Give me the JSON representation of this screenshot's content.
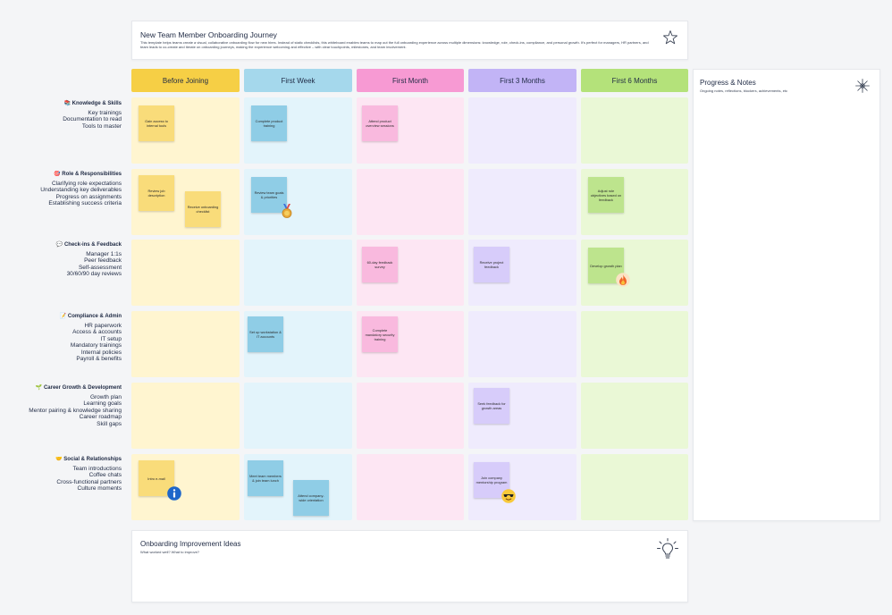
{
  "header": {
    "title": "New Team Member Onboarding Journey",
    "description": "This template helps teams create a visual, collaborative onboarding flow for new hires. Instead of static checklists, this whiteboard enables teams to map out the full onboarding experience across multiple dimensions: knowledge, role, check-ins, compliance, and personal growth. It's perfect for managers, HR partners, and team leads to co-create and iterate on onboarding journeys, making the experience welcoming and effective – with clear touchpoints, milestones, and team involvement."
  },
  "columns": [
    "Before Joining",
    "First Week",
    "First Month",
    "First 3 Months",
    "First 6 Months"
  ],
  "colors": {
    "col_heads": [
      "#f6cf45",
      "#a5d8ec",
      "#f79ad3",
      "#c2b4f6",
      "#b4e27a"
    ],
    "col_cells": [
      "#fff5d0",
      "#e3f4fb",
      "#fde6f3",
      "#efebfd",
      "#eaf8d6"
    ]
  },
  "rows": [
    {
      "title": "📚 Knowledge & Skills",
      "items": [
        "Key trainings",
        "Documentation to read",
        "Tools to master"
      ]
    },
    {
      "title": "🎯 Role & Responsibilities",
      "items": [
        "Clarifying role expectations",
        "Understanding key deliverables",
        "Progress on assignments",
        "Establishing success criteria"
      ]
    },
    {
      "title": "💬 Check-ins & Feedback",
      "items": [
        "Manager 1:1s",
        "Peer feedback",
        "Self-assessment",
        "30/60/90 day reviews"
      ]
    },
    {
      "title": "📝 Compliance & Admin",
      "items": [
        "HR paperwork",
        "Access & accounts",
        "IT setup",
        "Mandatory trainings",
        "Internal policies",
        "Payroll & benefits"
      ]
    },
    {
      "title": "🌱 Career Growth & Development",
      "items": [
        "Growth plan",
        "Learning goals",
        "Mentor pairing  & knowledge sharing",
        "Career roadmap",
        "Skill gaps"
      ]
    },
    {
      "title": "🤝 Social & Relationships",
      "items": [
        "Team introductions",
        "Coffee chats",
        "Cross-functional partners",
        "Culture moments"
      ]
    }
  ],
  "notes": {
    "n1": "Gain access to internal tools",
    "n2": "Complete product training",
    "n3": "Attend product overview sessions",
    "n4": "Review job description",
    "n5": "Receive onboarding checklist",
    "n6": "Review team goals & priorities",
    "n7": "Adjust role objectives based on feedback",
    "n8": "60-day feedback survey",
    "n9": "Receive project feedback",
    "n10": "Develop growth plan",
    "n11": "Set up workstation & IT accounts",
    "n12": "Complete mandatory security training",
    "n13": "Seek feedback for growth areas",
    "n14": "Intro e-mail",
    "n15": "Meet team members & join team lunch",
    "n16": "Attend company-wide orientation",
    "n17": "Join company mentorship program"
  },
  "progress": {
    "title": "Progress & Notes",
    "subtitle": "Ongoing notes, reflections, blockers, achievements, etc"
  },
  "ideas": {
    "title": "Onboarding Improvement Ideas",
    "subtitle": "What worked well? What to improve?"
  },
  "icons": [
    "star-icon",
    "sparkle-icon",
    "lightbulb-icon",
    "medal-icon",
    "fire-icon",
    "info-icon",
    "cool-face-icon"
  ]
}
